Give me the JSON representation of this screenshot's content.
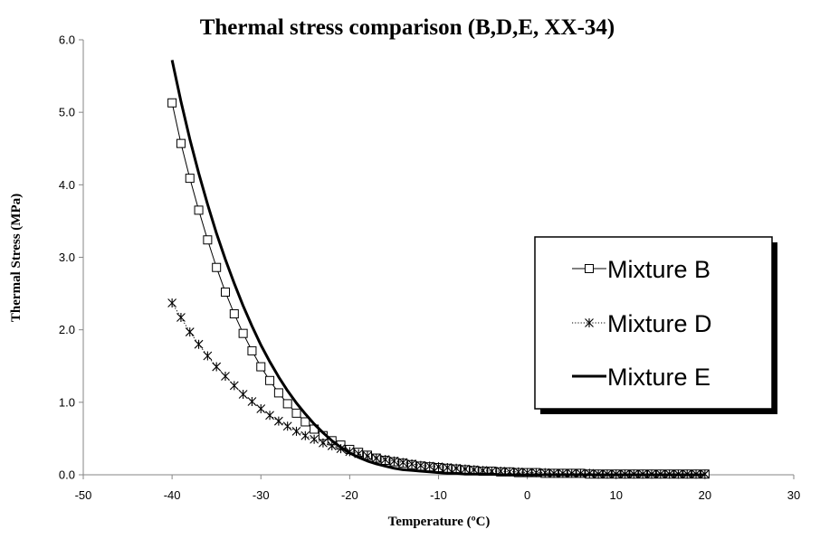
{
  "chart_data": {
    "type": "line",
    "title": "Thermal stress comparison (B,D,E, XX-34)",
    "xlabel": "Temperature (ºC)",
    "ylabel": "Thermal Stress (MPa)",
    "xlim": [
      -50,
      30
    ],
    "ylim": [
      0,
      6
    ],
    "x_ticks": [
      "-50",
      "-40",
      "-30",
      "-20",
      "-10",
      "0",
      "10",
      "20",
      "30"
    ],
    "y_ticks": [
      "0.0",
      "1.0",
      "2.0",
      "3.0",
      "4.0",
      "5.0",
      "6.0"
    ],
    "grid": false,
    "legend_position": "right",
    "series": [
      {
        "name": "Mixture B",
        "marker": "square",
        "line_style": "solid-thin",
        "color": "#000000",
        "x": [
          -40,
          -39,
          -38,
          -37,
          -36,
          -35,
          -34,
          -33,
          -32,
          -31,
          -30,
          -29,
          -28,
          -27,
          -26,
          -25,
          -24,
          -23,
          -22,
          -21,
          -20,
          -19,
          -18,
          -17,
          -16,
          -15,
          -14,
          -13,
          -12,
          -11,
          -10,
          -9,
          -8,
          -7,
          -6,
          -5,
          -4,
          -3,
          -2,
          -1,
          0,
          1,
          2,
          3,
          4,
          5,
          6,
          7,
          8,
          9,
          10,
          11,
          12,
          13,
          14,
          15,
          16,
          17,
          18,
          19,
          20
        ],
        "y": [
          5.13,
          4.57,
          4.09,
          3.65,
          3.24,
          2.86,
          2.52,
          2.22,
          1.95,
          1.71,
          1.49,
          1.3,
          1.13,
          0.98,
          0.85,
          0.73,
          0.63,
          0.54,
          0.47,
          0.41,
          0.35,
          0.31,
          0.27,
          0.23,
          0.2,
          0.18,
          0.16,
          0.14,
          0.12,
          0.11,
          0.1,
          0.09,
          0.08,
          0.07,
          0.06,
          0.05,
          0.05,
          0.04,
          0.04,
          0.03,
          0.03,
          0.03,
          0.02,
          0.02,
          0.02,
          0.02,
          0.02,
          0.01,
          0.01,
          0.01,
          0.01,
          0.01,
          0.01,
          0.01,
          0.01,
          0.01,
          0.01,
          0.01,
          0.01,
          0.01,
          0.01
        ]
      },
      {
        "name": "Mixture D",
        "marker": "asterisk",
        "line_style": "dotted",
        "color": "#000000",
        "x": [
          -40,
          -39,
          -38,
          -37,
          -36,
          -35,
          -34,
          -33,
          -32,
          -31,
          -30,
          -29,
          -28,
          -27,
          -26,
          -25,
          -24,
          -23,
          -22,
          -21,
          -20,
          -19,
          -18,
          -17,
          -16,
          -15,
          -14,
          -13,
          -12,
          -11,
          -10,
          -9,
          -8,
          -7,
          -6,
          -5,
          -4,
          -3,
          -2,
          -1,
          0,
          1,
          2,
          3,
          4,
          5,
          6,
          7,
          8,
          9,
          10,
          11,
          12,
          13,
          14,
          15,
          16,
          17,
          18,
          19,
          20
        ],
        "y": [
          2.37,
          2.17,
          1.97,
          1.8,
          1.64,
          1.49,
          1.36,
          1.23,
          1.11,
          1.01,
          0.91,
          0.82,
          0.74,
          0.67,
          0.6,
          0.54,
          0.49,
          0.44,
          0.4,
          0.36,
          0.32,
          0.29,
          0.26,
          0.23,
          0.21,
          0.19,
          0.17,
          0.15,
          0.13,
          0.12,
          0.11,
          0.1,
          0.09,
          0.08,
          0.07,
          0.06,
          0.05,
          0.05,
          0.04,
          0.04,
          0.03,
          0.03,
          0.03,
          0.02,
          0.02,
          0.02,
          0.02,
          0.02,
          0.01,
          0.01,
          0.01,
          0.01,
          0.01,
          0.01,
          0.01,
          0.01,
          0.01,
          0.01,
          0.01,
          0.01,
          0.01
        ]
      },
      {
        "name": "Mixture E",
        "marker": "none",
        "line_style": "solid-thick",
        "color": "#000000",
        "x": [
          -40,
          -39,
          -38,
          -37,
          -36,
          -35,
          -34,
          -33,
          -32,
          -31,
          -30,
          -29,
          -28,
          -27,
          -26,
          -25,
          -24,
          -23,
          -22,
          -21,
          -20,
          -19,
          -18,
          -17,
          -16,
          -15,
          -14,
          -13,
          -12,
          -11,
          -10,
          -9,
          -8,
          -7,
          -6,
          -5,
          -4,
          -3,
          -2,
          -1,
          0,
          2,
          4,
          6,
          8,
          10,
          12,
          14,
          16,
          18,
          20
        ],
        "y": [
          5.72,
          5.15,
          4.63,
          4.16,
          3.73,
          3.33,
          2.97,
          2.64,
          2.33,
          2.05,
          1.79,
          1.56,
          1.35,
          1.16,
          0.99,
          0.84,
          0.7,
          0.58,
          0.47,
          0.38,
          0.3,
          0.24,
          0.19,
          0.15,
          0.12,
          0.09,
          0.07,
          0.06,
          0.05,
          0.04,
          0.03,
          0.02,
          0.02,
          0.01,
          0.01,
          0.01,
          0.01,
          0.0,
          0.0,
          0.0,
          0.0,
          0.0,
          0.0,
          0.0,
          0.0,
          0.0,
          0.0,
          0.0,
          0.0,
          0.0,
          0.0
        ]
      }
    ]
  }
}
